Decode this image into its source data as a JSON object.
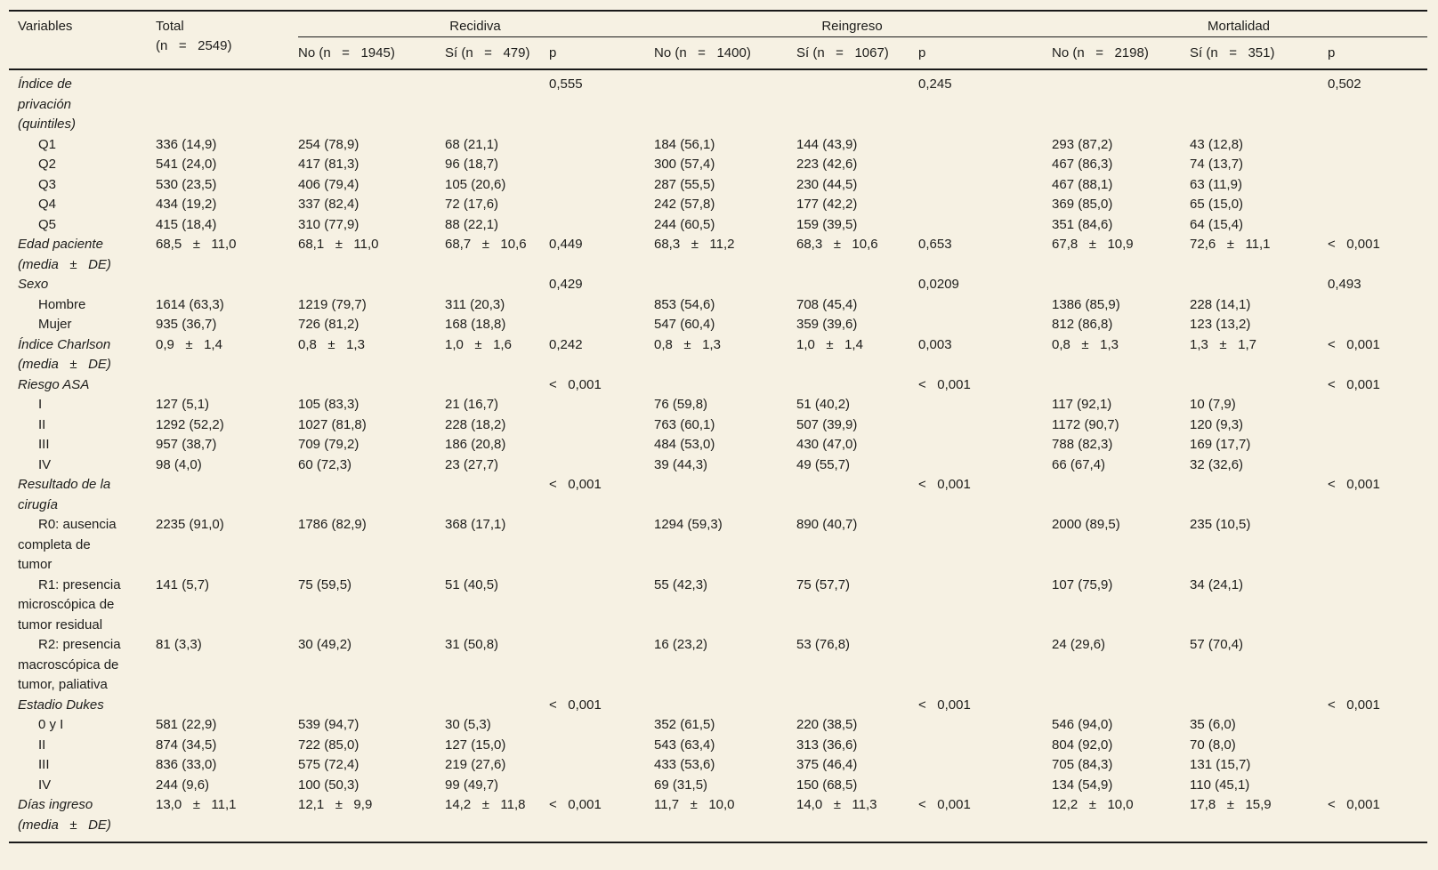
{
  "colors": {
    "background": "#f6f1e3",
    "rule": "#1a1a1a",
    "text": "#1d1d1b"
  },
  "table": {
    "header": {
      "variables": "Variables",
      "total": "Total\n(n   =   2549)",
      "groups": [
        {
          "label": "Recidiva",
          "no": "No (n   =   1945)",
          "si": "Sí (n   =   479)",
          "p": "p"
        },
        {
          "label": "Reingreso",
          "no": "No (n   =   1400)",
          "si": "Sí (n   =   1067)",
          "p": "p"
        },
        {
          "label": "Mortalidad",
          "no": "No (n   =   2198)",
          "si": "Sí (n   =   351)",
          "p": "p"
        }
      ]
    },
    "rows": [
      {
        "type": "category",
        "label": "Índice de\nprivación\n(quintiles)",
        "cells": [
          "",
          "",
          "",
          "0,555",
          "",
          "",
          "0,245",
          "",
          "",
          "0,502"
        ]
      },
      {
        "type": "sub",
        "label": "Q1",
        "cells": [
          "336 (14,9)",
          "254 (78,9)",
          "68 (21,1)",
          "",
          "184 (56,1)",
          "144 (43,9)",
          "",
          "293 (87,2)",
          "43 (12,8)",
          ""
        ]
      },
      {
        "type": "sub",
        "label": "Q2",
        "cells": [
          "541 (24,0)",
          "417 (81,3)",
          "96 (18,7)",
          "",
          "300 (57,4)",
          "223 (42,6)",
          "",
          "467 (86,3)",
          "74 (13,7)",
          ""
        ]
      },
      {
        "type": "sub",
        "label": "Q3",
        "cells": [
          "530 (23,5)",
          "406 (79,4)",
          "105 (20,6)",
          "",
          "287 (55,5)",
          "230 (44,5)",
          "",
          "467 (88,1)",
          "63 (11,9)",
          ""
        ]
      },
      {
        "type": "sub",
        "label": "Q4",
        "cells": [
          "434 (19,2)",
          "337 (82,4)",
          "72 (17,6)",
          "",
          "242 (57,8)",
          "177 (42,2)",
          "",
          "369 (85,0)",
          "65 (15,0)",
          ""
        ]
      },
      {
        "type": "sub",
        "label": "Q5",
        "cells": [
          "415 (18,4)",
          "310 (77,9)",
          "88 (22,1)",
          "",
          "244 (60,5)",
          "159 (39,5)",
          "",
          "351 (84,6)",
          "64 (15,4)",
          ""
        ]
      },
      {
        "type": "category",
        "label": "Edad paciente\n(media   ±   DE)",
        "cells": [
          "68,5   ±   11,0",
          "68,1   ±   11,0",
          "68,7   ±   10,6",
          "0,449",
          "68,3   ±   11,2",
          "68,3   ±   10,6",
          "0,653",
          "67,8   ±   10,9",
          "72,6   ±   11,1",
          "<   0,001"
        ]
      },
      {
        "type": "category",
        "label": "Sexo",
        "cells": [
          "",
          "",
          "",
          "0,429",
          "",
          "",
          "0,0209",
          "",
          "",
          "0,493"
        ]
      },
      {
        "type": "sub",
        "label": "Hombre",
        "cells": [
          "1614 (63,3)",
          "1219 (79,7)",
          "311 (20,3)",
          "",
          "853 (54,6)",
          "708 (45,4)",
          "",
          "1386 (85,9)",
          "228 (14,1)",
          ""
        ]
      },
      {
        "type": "sub",
        "label": "Mujer",
        "cells": [
          "935 (36,7)",
          "726 (81,2)",
          "168 (18,8)",
          "",
          "547 (60,4)",
          "359 (39,6)",
          "",
          "812 (86,8)",
          "123 (13,2)",
          ""
        ]
      },
      {
        "type": "category",
        "label": "Índice Charlson\n(media   ±   DE)",
        "cells": [
          "0,9   ±   1,4",
          "0,8   ±   1,3",
          "1,0   ±   1,6",
          "0,242",
          "0,8   ±   1,3",
          "1,0   ±   1,4",
          "0,003",
          "0,8   ±   1,3",
          "1,3   ±   1,7",
          "<   0,001"
        ]
      },
      {
        "type": "category",
        "label": "Riesgo ASA",
        "cells": [
          "",
          "",
          "",
          "<   0,001",
          "",
          "",
          "<   0,001",
          "",
          "",
          "<   0,001"
        ]
      },
      {
        "type": "sub",
        "label": "I",
        "cells": [
          "127 (5,1)",
          "105 (83,3)",
          "21 (16,7)",
          "",
          "76 (59,8)",
          "51 (40,2)",
          "",
          "117 (92,1)",
          "10 (7,9)",
          ""
        ]
      },
      {
        "type": "sub",
        "label": "II",
        "cells": [
          "1292 (52,2)",
          "1027 (81,8)",
          "228 (18,2)",
          "",
          "763 (60,1)",
          "507 (39,9)",
          "",
          "1172 (90,7)",
          "120 (9,3)",
          ""
        ]
      },
      {
        "type": "sub",
        "label": "III",
        "cells": [
          "957 (38,7)",
          "709 (79,2)",
          "186 (20,8)",
          "",
          "484 (53,0)",
          "430 (47,0)",
          "",
          "788 (82,3)",
          "169 (17,7)",
          ""
        ]
      },
      {
        "type": "sub",
        "label": "IV",
        "cells": [
          "98 (4,0)",
          "60 (72,3)",
          "23 (27,7)",
          "",
          "39 (44,3)",
          "49 (55,7)",
          "",
          "66 (67,4)",
          "32 (32,6)",
          ""
        ]
      },
      {
        "type": "category",
        "label": "Resultado de la\ncirugía",
        "cells": [
          "",
          "",
          "",
          "<   0,001",
          "",
          "",
          "<   0,001",
          "",
          "",
          "<   0,001"
        ]
      },
      {
        "type": "sub",
        "label": "R0: ausencia\ncompleta de\ntumor",
        "cells": [
          "2235 (91,0)",
          "1786 (82,9)",
          "368 (17,1)",
          "",
          "1294 (59,3)",
          "890 (40,7)",
          "",
          "2000 (89,5)",
          "235 (10,5)",
          ""
        ]
      },
      {
        "type": "sub",
        "label": "R1: presencia\nmicroscópica de\ntumor residual",
        "cells": [
          "141 (5,7)",
          "75 (59,5)",
          "51 (40,5)",
          "",
          "55 (42,3)",
          "75 (57,7)",
          "",
          "107 (75,9)",
          "34 (24,1)",
          ""
        ]
      },
      {
        "type": "sub",
        "label": "R2: presencia\nmacroscópica de\ntumor, paliativa",
        "cells": [
          "81 (3,3)",
          "30 (49,2)",
          "31 (50,8)",
          "",
          "16 (23,2)",
          "53 (76,8)",
          "",
          "24 (29,6)",
          "57 (70,4)",
          ""
        ]
      },
      {
        "type": "category",
        "label": "Estadio Dukes",
        "cells": [
          "",
          "",
          "",
          "<   0,001",
          "",
          "",
          "<   0,001",
          "",
          "",
          "<   0,001"
        ]
      },
      {
        "type": "sub",
        "label": "0 y I",
        "cells": [
          "581 (22,9)",
          "539 (94,7)",
          "30 (5,3)",
          "",
          "352 (61,5)",
          "220 (38,5)",
          "",
          "546 (94,0)",
          "35 (6,0)",
          ""
        ]
      },
      {
        "type": "sub",
        "label": "II",
        "cells": [
          "874 (34,5)",
          "722 (85,0)",
          "127 (15,0)",
          "",
          "543 (63,4)",
          "313 (36,6)",
          "",
          "804 (92,0)",
          "70 (8,0)",
          ""
        ]
      },
      {
        "type": "sub",
        "label": "III",
        "cells": [
          "836 (33,0)",
          "575 (72,4)",
          "219 (27,6)",
          "",
          "433 (53,6)",
          "375 (46,4)",
          "",
          "705 (84,3)",
          "131 (15,7)",
          ""
        ]
      },
      {
        "type": "sub",
        "label": "IV",
        "cells": [
          "244 (9,6)",
          "100 (50,3)",
          "99 (49,7)",
          "",
          "69 (31,5)",
          "150 (68,5)",
          "",
          "134 (54,9)",
          "110 (45,1)",
          ""
        ]
      },
      {
        "type": "category",
        "label": "Días ingreso\n(media   ±   DE)",
        "cells": [
          "13,0   ±   11,1",
          "12,1   ±   9,9",
          "14,2   ±   11,8",
          "<   0,001",
          "11,7   ±   10,0",
          "14,0   ±   11,3",
          "<   0,001",
          "12,2   ±   10,0",
          "17,8   ±   15,9",
          "<   0,001"
        ]
      }
    ]
  }
}
